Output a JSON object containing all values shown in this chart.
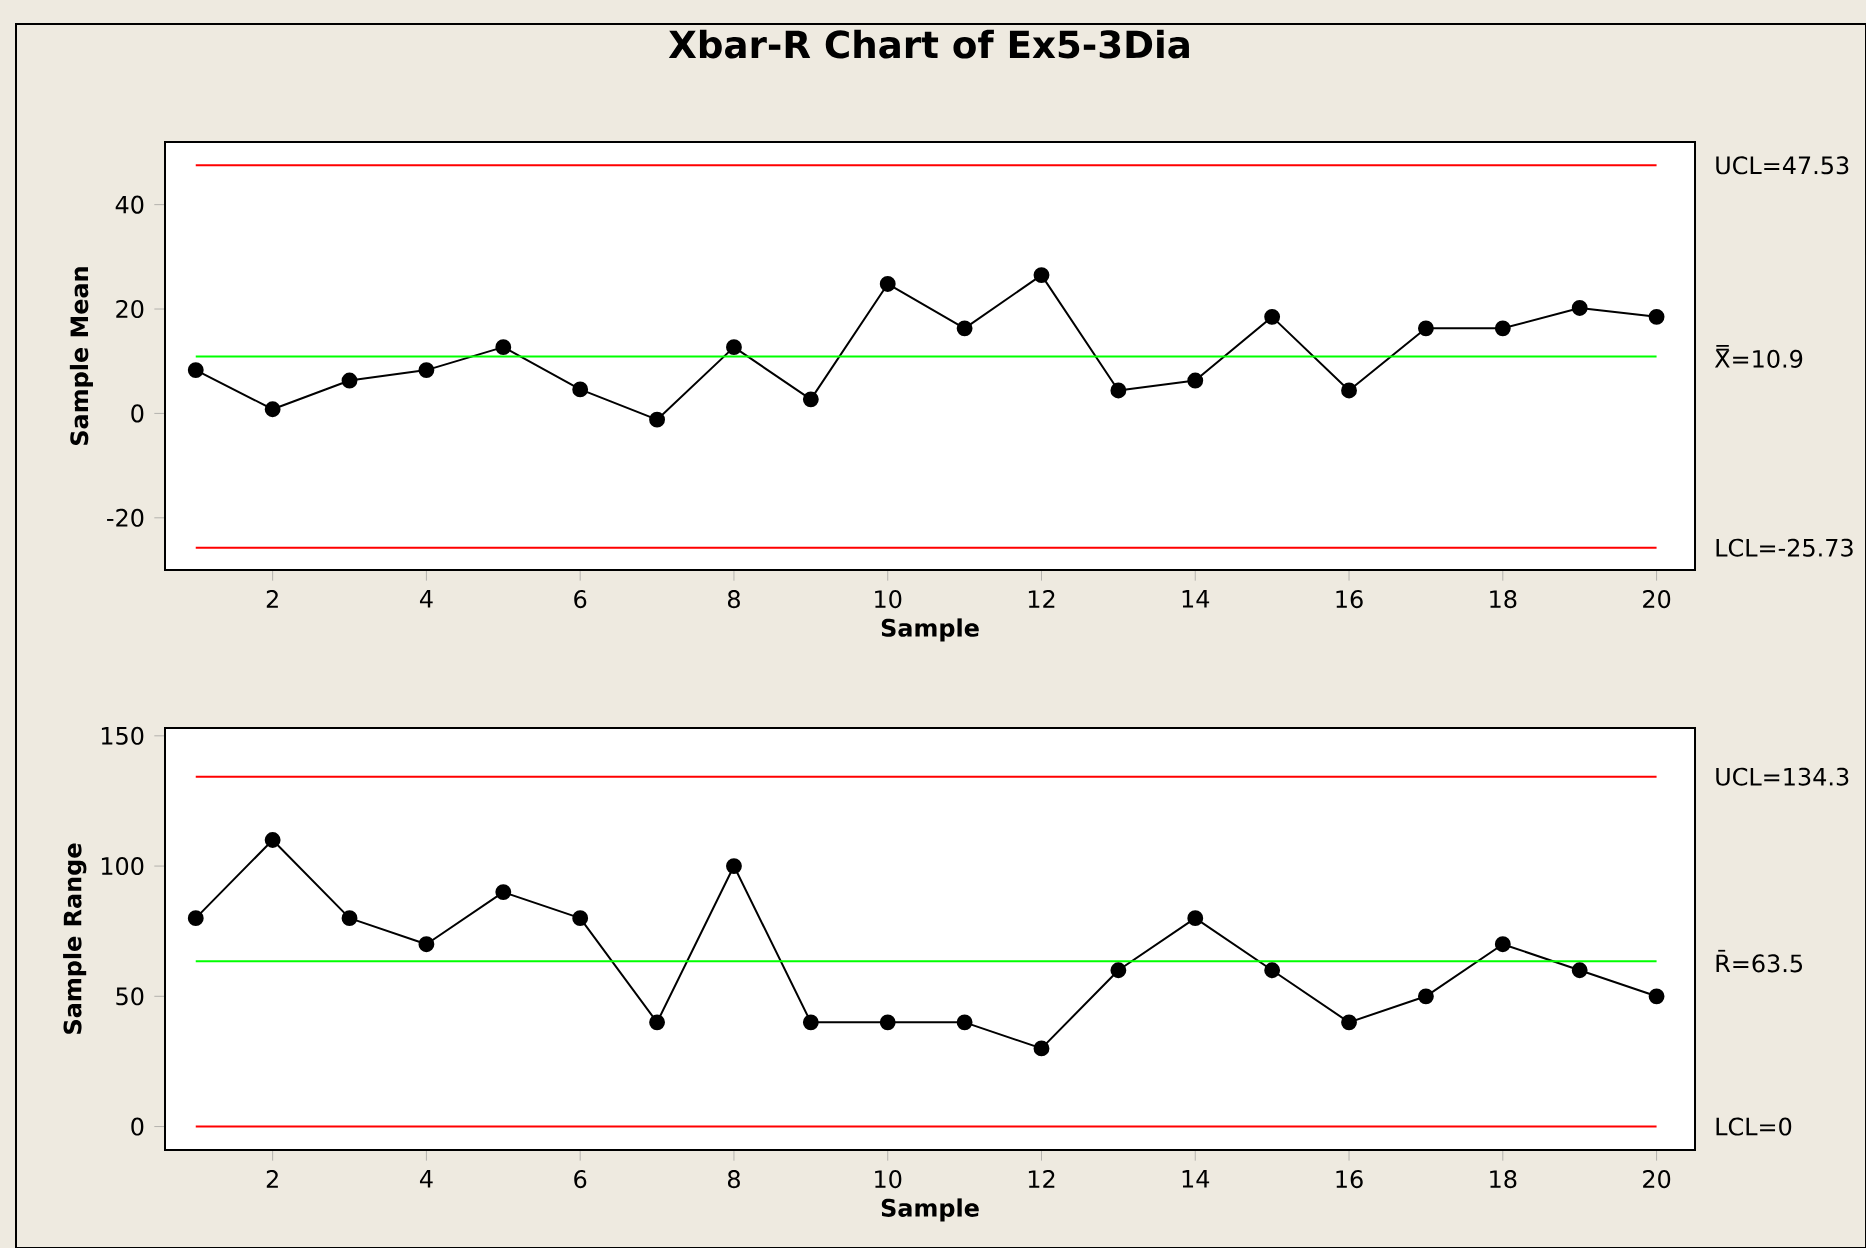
{
  "chart_data": [
    {
      "type": "line",
      "title": "Xbar-R Chart of Ex5-3Dia",
      "xlabel": "Sample",
      "ylabel": "Sample Mean",
      "x": [
        1,
        2,
        3,
        4,
        5,
        6,
        7,
        8,
        9,
        10,
        11,
        12,
        13,
        14,
        15,
        16,
        17,
        18,
        19,
        20
      ],
      "series": [
        {
          "color": "#000000",
          "values": [
            8.3,
            0.8,
            6.3,
            8.3,
            12.7,
            4.6,
            -1.2,
            12.7,
            2.7,
            24.8,
            16.3,
            26.5,
            4.4,
            6.3,
            18.5,
            4.4,
            16.3,
            16.3,
            20.2,
            18.5
          ]
        }
      ],
      "xlim": [
        0.6,
        20.5
      ],
      "xticks": [
        2,
        4,
        6,
        8,
        10,
        12,
        14,
        16,
        18,
        20
      ],
      "ylim": [
        -30,
        52
      ],
      "yticks": [
        -20,
        0,
        20,
        40
      ],
      "marker": "circle",
      "line_style": "solid",
      "grid": false,
      "legend": false,
      "ref_lines": [
        {
          "axis": "y",
          "value": 47.53,
          "label": "UCL=47.53",
          "color": "#ff0000"
        },
        {
          "axis": "y",
          "value": 10.9,
          "label": "X̿=10.9",
          "color": "#00ff00"
        },
        {
          "axis": "y",
          "value": -25.73,
          "label": "LCL=-25.73",
          "color": "#ff0000"
        }
      ]
    },
    {
      "type": "line",
      "xlabel": "Sample",
      "ylabel": "Sample Range",
      "x": [
        1,
        2,
        3,
        4,
        5,
        6,
        7,
        8,
        9,
        10,
        11,
        12,
        13,
        14,
        15,
        16,
        17,
        18,
        19,
        20
      ],
      "series": [
        {
          "color": "#000000",
          "values": [
            80,
            110,
            80,
            70,
            90,
            80,
            40,
            100,
            40,
            40,
            40,
            30,
            60,
            80,
            60,
            40,
            50,
            70,
            60,
            50
          ]
        }
      ],
      "xlim": [
        0.6,
        20.5
      ],
      "xticks": [
        2,
        4,
        6,
        8,
        10,
        12,
        14,
        16,
        18,
        20
      ],
      "ylim": [
        -9,
        153
      ],
      "yticks": [
        0,
        50,
        100,
        150
      ],
      "marker": "circle",
      "line_style": "solid",
      "grid": false,
      "legend": false,
      "ref_lines": [
        {
          "axis": "y",
          "value": 134.3,
          "label": "UCL=134.3",
          "color": "#ff0000"
        },
        {
          "axis": "y",
          "value": 63.5,
          "label": "R̄=63.5",
          "color": "#00ff00"
        },
        {
          "axis": "y",
          "value": 0,
          "label": "LCL=0",
          "color": "#ff0000"
        }
      ]
    }
  ]
}
